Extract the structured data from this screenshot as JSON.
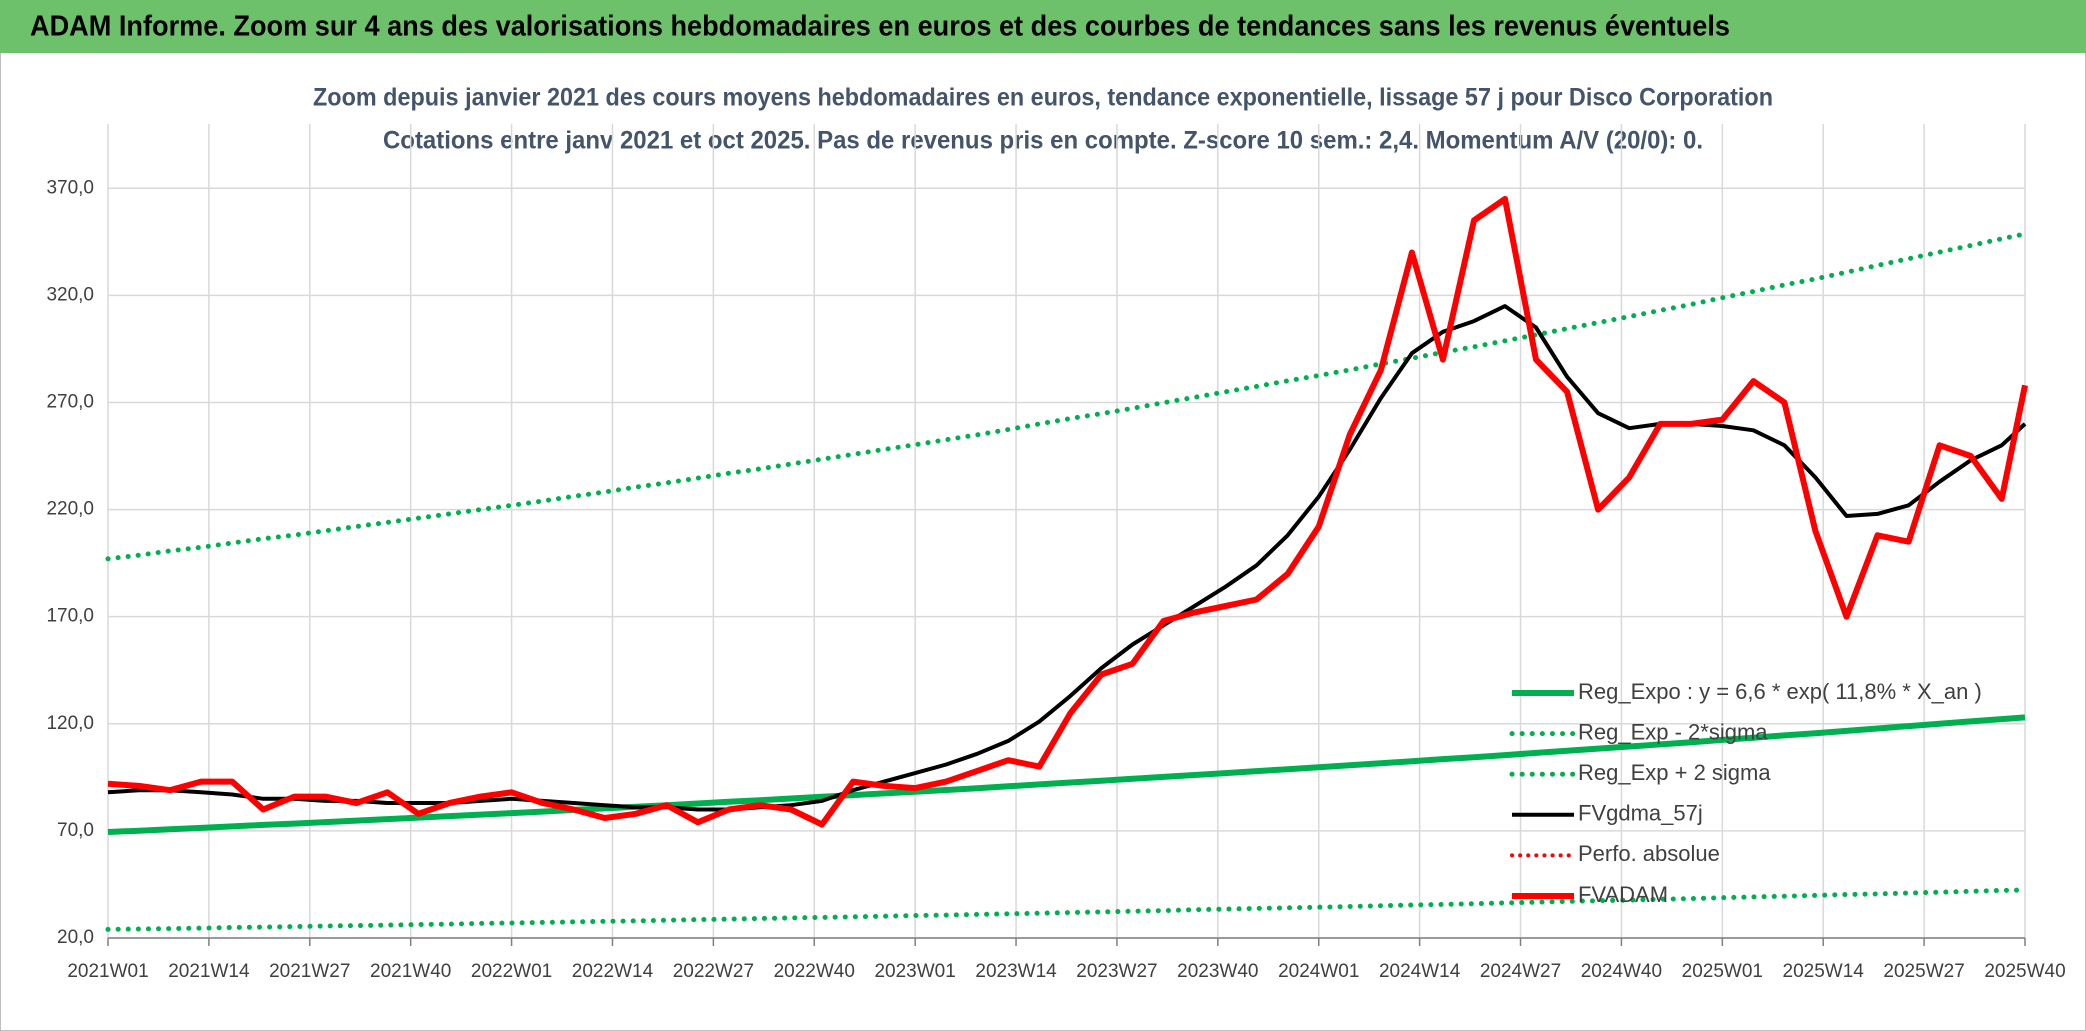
{
  "header": {
    "title": "ADAM Informe. Zoom sur 4 ans des valorisations hebdomadaires en euros et des courbes de tendances sans les revenus éventuels"
  },
  "chart_data": {
    "type": "line",
    "title": "Zoom depuis janvier 2021 des cours moyens hebdomadaires en euros, tendance exponentielle, lissage 57 j pour Disco Corporation",
    "subtitle": "Cotations entre janv 2021 et oct 2025. Pas de revenus pris en compte. Z-score 10 sem.: 2,4. Momentum A/V (20/0): 0.",
    "x": [
      0,
      4,
      8,
      12,
      16,
      20,
      24,
      28,
      32,
      36,
      40,
      44,
      48,
      52,
      56,
      60,
      64,
      68,
      72,
      76,
      80,
      84,
      88,
      92,
      96,
      100,
      104,
      108,
      112,
      116,
      120,
      124,
      128,
      132,
      136,
      140,
      144,
      148,
      152,
      156,
      160,
      164,
      168,
      172,
      176,
      180,
      184,
      188,
      192,
      196,
      200,
      204,
      208,
      212,
      216,
      220,
      224,
      228,
      232,
      236,
      240,
      244,
      247
    ],
    "xlim": [
      0,
      247
    ],
    "xticks": [
      {
        "value": 0,
        "label": "2021W01"
      },
      {
        "value": 13,
        "label": "2021W14"
      },
      {
        "value": 26,
        "label": "2021W27"
      },
      {
        "value": 39,
        "label": "2021W40"
      },
      {
        "value": 52,
        "label": "2022W01"
      },
      {
        "value": 65,
        "label": "2022W14"
      },
      {
        "value": 78,
        "label": "2022W27"
      },
      {
        "value": 91,
        "label": "2022W40"
      },
      {
        "value": 104,
        "label": "2023W01"
      },
      {
        "value": 117,
        "label": "2023W14"
      },
      {
        "value": 130,
        "label": "2023W27"
      },
      {
        "value": 143,
        "label": "2023W40"
      },
      {
        "value": 156,
        "label": "2024W01"
      },
      {
        "value": 169,
        "label": "2024W14"
      },
      {
        "value": 182,
        "label": "2024W27"
      },
      {
        "value": 195,
        "label": "2024W40"
      },
      {
        "value": 208,
        "label": "2025W01"
      },
      {
        "value": 221,
        "label": "2025W14"
      },
      {
        "value": 234,
        "label": "2025W27"
      },
      {
        "value": 247,
        "label": "2025W40"
      }
    ],
    "ylim": [
      20,
      400
    ],
    "yticks": [
      {
        "value": 20,
        "label": "20,0"
      },
      {
        "value": 70,
        "label": "70,0"
      },
      {
        "value": 120,
        "label": "120,0"
      },
      {
        "value": 170,
        "label": "170,0"
      },
      {
        "value": 220,
        "label": "220,0"
      },
      {
        "value": 270,
        "label": "270,0"
      },
      {
        "value": 320,
        "label": "320,0"
      },
      {
        "value": 370,
        "label": "370,0"
      }
    ],
    "grid": true,
    "legend": "lower-right",
    "series": [
      {
        "name": "Reg_Expo : y = 6,6 * exp( 11,8% *  X_an )",
        "color": "#00b050",
        "style": "solid",
        "width": 6,
        "values": [
          69.5,
          70.1,
          70.8,
          71.4,
          72.1,
          72.8,
          73.4,
          74.1,
          74.8,
          75.5,
          76.2,
          76.9,
          77.6,
          78.3,
          79.0,
          79.8,
          80.5,
          81.3,
          82.0,
          82.8,
          83.6,
          84.3,
          85.1,
          85.9,
          86.7,
          87.5,
          88.3,
          89.1,
          89.9,
          90.8,
          91.7,
          92.6,
          93.4,
          94.3,
          95.2,
          96.1,
          97.0,
          97.9,
          98.8,
          99.7,
          100.6,
          101.6,
          102.5,
          103.5,
          104.4,
          105.4,
          106.4,
          107.4,
          108.4,
          109.4,
          110.4,
          111.4,
          112.5,
          113.5,
          114.6,
          115.6,
          116.7,
          117.8,
          118.9,
          120.0,
          121.1,
          122.2,
          123.0
        ]
      },
      {
        "name": "Reg_Exp - 2*sigma",
        "color": "#00b050",
        "style": "dotted",
        "width": 5,
        "values": [
          24.0,
          24.2,
          24.4,
          24.6,
          24.9,
          25.1,
          25.3,
          25.6,
          25.8,
          26.0,
          26.3,
          26.5,
          26.8,
          27.0,
          27.3,
          27.5,
          27.8,
          28.0,
          28.3,
          28.6,
          28.8,
          29.1,
          29.4,
          29.6,
          29.9,
          30.2,
          30.5,
          30.7,
          31.0,
          31.3,
          31.6,
          31.9,
          32.2,
          32.5,
          32.8,
          33.2,
          33.5,
          33.8,
          34.1,
          34.4,
          34.7,
          35.1,
          35.4,
          35.7,
          36.0,
          36.4,
          36.7,
          37.1,
          37.4,
          37.7,
          38.1,
          38.4,
          38.8,
          39.2,
          39.5,
          39.9,
          40.3,
          40.6,
          41.0,
          41.4,
          41.8,
          42.2,
          42.4
        ]
      },
      {
        "name": "Reg_Exp + 2 sigma",
        "color": "#00b050",
        "style": "dotted",
        "width": 5,
        "values": [
          197.0,
          198.7,
          200.7,
          202.4,
          204.4,
          206.4,
          208.1,
          210.1,
          212.1,
          214.0,
          216.0,
          218.0,
          220.0,
          222.0,
          224.0,
          226.2,
          228.2,
          230.5,
          232.5,
          234.7,
          237.0,
          239.0,
          241.3,
          243.5,
          245.8,
          248.1,
          250.3,
          252.6,
          254.9,
          257.4,
          260.0,
          262.5,
          264.8,
          267.3,
          269.9,
          272.4,
          275.0,
          277.5,
          280.1,
          282.6,
          285.2,
          288.0,
          290.6,
          293.4,
          296.0,
          298.8,
          301.6,
          304.5,
          307.3,
          310.1,
          313.0,
          315.8,
          318.9,
          321.8,
          324.9,
          327.7,
          330.8,
          334.0,
          337.1,
          340.2,
          343.3,
          346.4,
          348.7
        ]
      },
      {
        "name": "FVgdma_57j",
        "color": "#000000",
        "style": "solid",
        "width": 4,
        "values": [
          88,
          89,
          89,
          88,
          87,
          85,
          85,
          84,
          84,
          83,
          83,
          83,
          84,
          85,
          84,
          83,
          82,
          81,
          81,
          80,
          80,
          81,
          82,
          84,
          89,
          93,
          97,
          101,
          106,
          112,
          121,
          133,
          146,
          157,
          166,
          175,
          184,
          194,
          208,
          226,
          248,
          272,
          293,
          303,
          308,
          315,
          305,
          282,
          265,
          258,
          260,
          260,
          259,
          257,
          250,
          235,
          217,
          218,
          222,
          233,
          243,
          250,
          260
        ]
      },
      {
        "name": "Perfo. absolue",
        "color": "#ff0000",
        "style": "dotted",
        "width": 4
      },
      {
        "name": "FVADAM",
        "color": "#ff0000",
        "style": "solid",
        "width": 6,
        "values": [
          92,
          91,
          89,
          93,
          93,
          80,
          86,
          86,
          83,
          88,
          78,
          83,
          86,
          88,
          83,
          80,
          76,
          78,
          82,
          74,
          80,
          82,
          80,
          73,
          93,
          91,
          90,
          93,
          98,
          103,
          100,
          125,
          143,
          148,
          168,
          172,
          175,
          178,
          190,
          212,
          255,
          285,
          340,
          290,
          355,
          365,
          290,
          275,
          220,
          235,
          260,
          260,
          262,
          280,
          270,
          210,
          170,
          208,
          205,
          250,
          245,
          225,
          278
        ]
      }
    ]
  }
}
